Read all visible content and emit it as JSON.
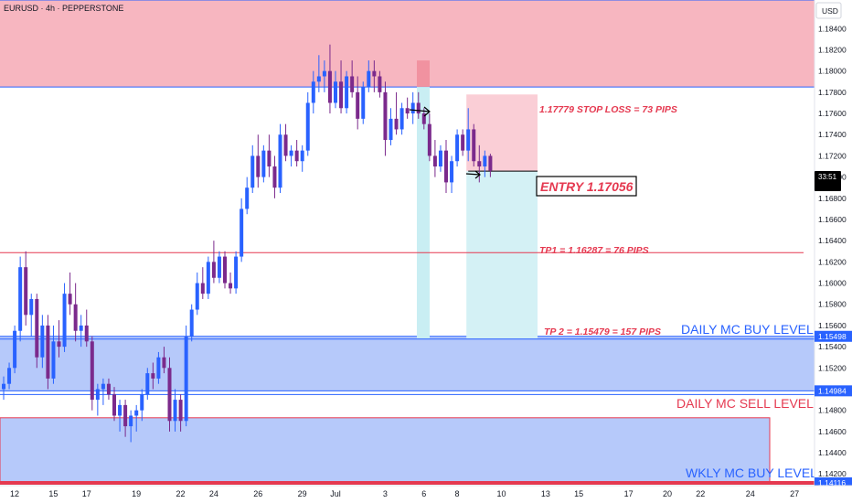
{
  "header": {
    "symbol": "EURUSD · 4h · PEPPERSTONE"
  },
  "axis": {
    "currency": "USD",
    "countdown": "33:51"
  },
  "chart_data": {
    "type": "candlestick",
    "title": "",
    "ylim": [
      1.1409,
      1.1867
    ],
    "y_ticks": [
      "1.18400",
      "1.18200",
      "1.18000",
      "1.17800",
      "1.17600",
      "1.17400",
      "1.17200",
      "1.17000",
      "1.16800",
      "1.16600",
      "1.16400",
      "1.16200",
      "1.16000",
      "1.15800",
      "1.15600",
      "1.15400",
      "1.15200",
      "1.14800",
      "1.14600",
      "1.14400",
      "1.14200"
    ],
    "x_ticks": [
      {
        "label": "12",
        "i": 1
      },
      {
        "label": "15",
        "i": 8
      },
      {
        "label": "17",
        "i": 14
      },
      {
        "label": "19",
        "i": 23
      },
      {
        "label": "22",
        "i": 31
      },
      {
        "label": "24",
        "i": 37
      },
      {
        "label": "26",
        "i": 45
      },
      {
        "label": "29",
        "i": 53
      },
      {
        "label": "Jul",
        "i": 59
      },
      {
        "label": "3",
        "i": 68
      },
      {
        "label": "6",
        "i": 75
      },
      {
        "label": "8",
        "i": 81
      },
      {
        "label": "10",
        "i": 89
      },
      {
        "label": "13",
        "i": 97
      },
      {
        "label": "15",
        "i": 103
      },
      {
        "label": "17",
        "i": 112
      },
      {
        "label": "20",
        "i": 119
      },
      {
        "label": "22",
        "i": 125
      },
      {
        "label": "24",
        "i": 134
      },
      {
        "label": "27",
        "i": 142
      }
    ],
    "candles": [
      [
        1.15,
        1.1512,
        1.149,
        1.1505
      ],
      [
        1.1505,
        1.1525,
        1.15,
        1.152
      ],
      [
        1.152,
        1.156,
        1.1515,
        1.1555
      ],
      [
        1.1555,
        1.1625,
        1.1545,
        1.1615
      ],
      [
        1.1615,
        1.163,
        1.156,
        1.157
      ],
      [
        1.157,
        1.159,
        1.155,
        1.1585
      ],
      [
        1.1585,
        1.159,
        1.152,
        1.153
      ],
      [
        1.153,
        1.157,
        1.152,
        1.156
      ],
      [
        1.156,
        1.157,
        1.15,
        1.151
      ],
      [
        1.151,
        1.156,
        1.1505,
        1.1545
      ],
      [
        1.1545,
        1.1565,
        1.153,
        1.154
      ],
      [
        1.154,
        1.16,
        1.1535,
        1.159
      ],
      [
        1.159,
        1.161,
        1.157,
        1.158
      ],
      [
        1.158,
        1.16,
        1.1545,
        1.1555
      ],
      [
        1.1555,
        1.157,
        1.154,
        1.156
      ],
      [
        1.156,
        1.1575,
        1.154,
        1.1545
      ],
      [
        1.1545,
        1.155,
        1.148,
        1.149
      ],
      [
        1.149,
        1.1505,
        1.1475,
        1.15
      ],
      [
        1.15,
        1.151,
        1.1485,
        1.1505
      ],
      [
        1.1505,
        1.151,
        1.149,
        1.1495
      ],
      [
        1.1495,
        1.1502,
        1.147,
        1.1475
      ],
      [
        1.1475,
        1.149,
        1.146,
        1.1485
      ],
      [
        1.1485,
        1.149,
        1.1455,
        1.1465
      ],
      [
        1.1465,
        1.148,
        1.145,
        1.1475
      ],
      [
        1.1475,
        1.1485,
        1.146,
        1.148
      ],
      [
        1.148,
        1.15,
        1.147,
        1.1495
      ],
      [
        1.1495,
        1.152,
        1.149,
        1.1515
      ],
      [
        1.1515,
        1.1525,
        1.15,
        1.151
      ],
      [
        1.151,
        1.1535,
        1.1505,
        1.153
      ],
      [
        1.153,
        1.154,
        1.1515,
        1.152
      ],
      [
        1.152,
        1.153,
        1.146,
        1.147
      ],
      [
        1.147,
        1.15,
        1.146,
        1.149
      ],
      [
        1.149,
        1.1495,
        1.146,
        1.147
      ],
      [
        1.147,
        1.156,
        1.1465,
        1.155
      ],
      [
        1.155,
        1.158,
        1.1545,
        1.1575
      ],
      [
        1.1575,
        1.161,
        1.157,
        1.16
      ],
      [
        1.16,
        1.1615,
        1.1585,
        1.159
      ],
      [
        1.159,
        1.1625,
        1.1585,
        1.162
      ],
      [
        1.162,
        1.164,
        1.16,
        1.1605
      ],
      [
        1.1605,
        1.163,
        1.16,
        1.1625
      ],
      [
        1.1625,
        1.163,
        1.1595,
        1.16
      ],
      [
        1.16,
        1.161,
        1.159,
        1.1595
      ],
      [
        1.1595,
        1.163,
        1.159,
        1.1625
      ],
      [
        1.1625,
        1.168,
        1.162,
        1.167
      ],
      [
        1.167,
        1.17,
        1.1665,
        1.169
      ],
      [
        1.169,
        1.173,
        1.1685,
        1.172
      ],
      [
        1.172,
        1.174,
        1.169,
        1.17
      ],
      [
        1.17,
        1.173,
        1.1695,
        1.1725
      ],
      [
        1.1725,
        1.174,
        1.17,
        1.171
      ],
      [
        1.171,
        1.172,
        1.168,
        1.169
      ],
      [
        1.169,
        1.175,
        1.1685,
        1.174
      ],
      [
        1.174,
        1.175,
        1.1715,
        1.172
      ],
      [
        1.172,
        1.173,
        1.171,
        1.1725
      ],
      [
        1.1725,
        1.1735,
        1.171,
        1.1715
      ],
      [
        1.1715,
        1.173,
        1.1705,
        1.1725
      ],
      [
        1.1725,
        1.178,
        1.172,
        1.177
      ],
      [
        1.177,
        1.18,
        1.176,
        1.179
      ],
      [
        1.179,
        1.1815,
        1.178,
        1.1795
      ],
      [
        1.1795,
        1.181,
        1.178,
        1.18
      ],
      [
        1.18,
        1.1825,
        1.176,
        1.177
      ],
      [
        1.177,
        1.18,
        1.1765,
        1.179
      ],
      [
        1.179,
        1.181,
        1.176,
        1.1765
      ],
      [
        1.1765,
        1.18,
        1.176,
        1.1795
      ],
      [
        1.1795,
        1.181,
        1.1775,
        1.178
      ],
      [
        1.178,
        1.1795,
        1.1745,
        1.1755
      ],
      [
        1.1755,
        1.179,
        1.175,
        1.1785
      ],
      [
        1.1785,
        1.181,
        1.178,
        1.18
      ],
      [
        1.18,
        1.181,
        1.178,
        1.1795
      ],
      [
        1.1795,
        1.18,
        1.1775,
        1.178
      ],
      [
        1.178,
        1.179,
        1.172,
        1.1735
      ],
      [
        1.1735,
        1.1765,
        1.173,
        1.1755
      ],
      [
        1.1755,
        1.178,
        1.174,
        1.1745
      ],
      [
        1.1745,
        1.177,
        1.174,
        1.1765
      ],
      [
        1.1765,
        1.1775,
        1.1755,
        1.176
      ],
      [
        1.176,
        1.178,
        1.175,
        1.177
      ],
      [
        1.177,
        1.178,
        1.1755,
        1.176
      ],
      [
        1.176,
        1.1765,
        1.1745,
        1.175
      ],
      [
        1.175,
        1.176,
        1.1715,
        1.172
      ],
      [
        1.172,
        1.1735,
        1.17,
        1.171
      ],
      [
        1.171,
        1.173,
        1.1705,
        1.1725
      ],
      [
        1.1725,
        1.1735,
        1.1685,
        1.1695
      ],
      [
        1.1695,
        1.172,
        1.1685,
        1.1715
      ],
      [
        1.1715,
        1.1745,
        1.171,
        1.174
      ],
      [
        1.174,
        1.1745,
        1.172,
        1.1725
      ],
      [
        1.1725,
        1.1765,
        1.1715,
        1.1745
      ],
      [
        1.1745,
        1.175,
        1.171,
        1.1715
      ],
      [
        1.1715,
        1.173,
        1.1695,
        1.171
      ],
      [
        1.171,
        1.1725,
        1.17,
        1.172
      ],
      [
        1.172,
        1.1722,
        1.17,
        1.1706
      ]
    ],
    "levels": [
      {
        "name": "stop-loss-level",
        "price": 1.17779,
        "text": "1.17779 STOP LOSS = 73 PIPS",
        "color": "#e53950"
      },
      {
        "name": "entry-level",
        "price": 1.17056,
        "text": "ENTRY 1.17056",
        "color": "#e53950"
      },
      {
        "name": "tp1-level",
        "price": 1.16287,
        "text": "TP1 = 1.16287 = 76 PIPS",
        "color": "#e53950"
      },
      {
        "name": "tp2-level",
        "price": 1.15479,
        "text": "TP 2 = 1.15479 = 157 PIPS",
        "color": "#e53950"
      }
    ],
    "zones": [
      {
        "name": "supply-zone",
        "top": 1.1867,
        "bottom": 1.1785,
        "text": "",
        "fill": "#f7b6c0",
        "stroke": "#2962ff"
      },
      {
        "name": "daily-buy-zone",
        "top": 1.15498,
        "bottom": 1.14984,
        "text": "DAILY  MC BUY LEVEL",
        "fill": "#b6c9fa",
        "stroke": "#2962ff"
      },
      {
        "name": "weekly-buy-zone",
        "top": 1.1473,
        "bottom": 1.1412,
        "text": "WKLY MC BUY LEVEL",
        "fill": "#b6c9fa",
        "stroke": "#e53950"
      }
    ],
    "sell_label": "DAILY  MC SELL LEVEL",
    "price_tags": [
      {
        "value": "1.15498",
        "price": 1.15498
      },
      {
        "value": "1.14984",
        "price": 1.14984
      },
      {
        "value": "1.14116",
        "price": 1.14116
      }
    ],
    "colors": {
      "up": "#2962ff",
      "down": "#7b2a8c",
      "label": "#e53950",
      "zone_label": "#2962ff"
    }
  }
}
